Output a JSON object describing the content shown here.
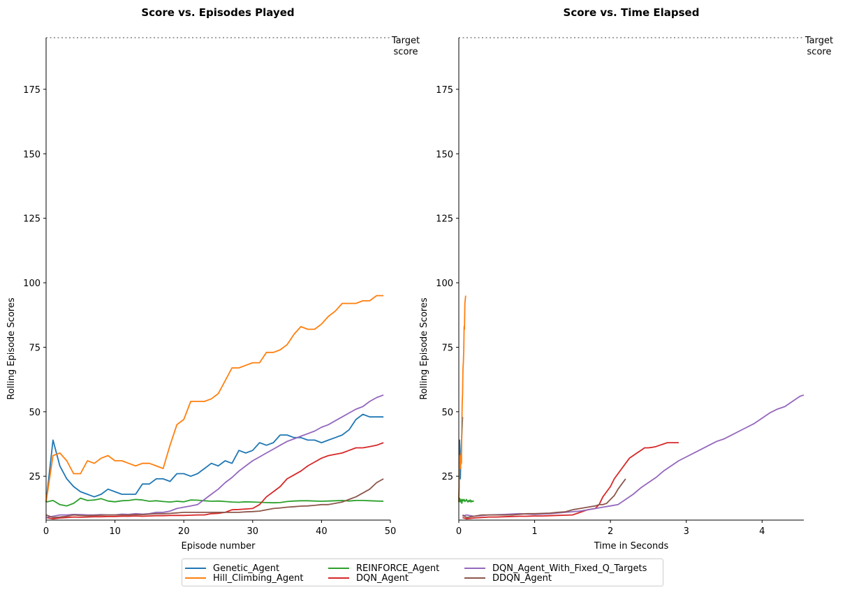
{
  "chart_data": [
    {
      "type": "line",
      "title": "Score vs. Episodes Played",
      "xlabel": "Episode number",
      "ylabel": "Rolling Episode Scores",
      "xlim": [
        0,
        50
      ],
      "ylim": [
        8,
        195
      ],
      "xticks": [
        0,
        10,
        20,
        30,
        40,
        50
      ],
      "yticks": [
        25,
        50,
        75,
        100,
        125,
        150,
        175
      ],
      "target": {
        "value": 195,
        "label_line1": "Target",
        "label_line2": "score"
      },
      "series": [
        {
          "name": "Genetic_Agent",
          "color": "#1f77b4",
          "x": [
            0,
            1,
            2,
            3,
            4,
            5,
            6,
            7,
            8,
            9,
            10,
            11,
            12,
            13,
            14,
            15,
            16,
            17,
            18,
            19,
            20,
            21,
            22,
            23,
            24,
            25,
            26,
            27,
            28,
            29,
            30,
            31,
            32,
            33,
            34,
            35,
            36,
            37,
            38,
            39,
            40,
            41,
            42,
            43,
            44,
            45,
            46,
            47,
            48,
            49
          ],
          "y": [
            15,
            39,
            29,
            24,
            21,
            19,
            18,
            17,
            18,
            20,
            19,
            18,
            18,
            18,
            22,
            22,
            24,
            24,
            23,
            26,
            26,
            25,
            26,
            28,
            30,
            29,
            31,
            30,
            35,
            34,
            35,
            38,
            37,
            38,
            41,
            41,
            40,
            40,
            39,
            39,
            38,
            39,
            40,
            41,
            43,
            47,
            49,
            48,
            48,
            48
          ]
        },
        {
          "name": "Hill_Climbing_Agent",
          "color": "#ff7f0e",
          "x": [
            0,
            1,
            2,
            3,
            4,
            5,
            6,
            7,
            8,
            9,
            10,
            11,
            12,
            13,
            14,
            15,
            16,
            17,
            18,
            19,
            20,
            21,
            22,
            23,
            24,
            25,
            26,
            27,
            28,
            29,
            30,
            31,
            32,
            33,
            34,
            35,
            36,
            37,
            38,
            39,
            40,
            41,
            42,
            43,
            44,
            45,
            46,
            47,
            48,
            49
          ],
          "y": [
            15,
            33,
            34,
            31,
            26,
            26,
            31,
            30,
            32,
            33,
            31,
            31,
            30,
            29,
            30,
            30,
            29,
            28,
            37,
            45,
            47,
            54,
            54,
            54,
            55,
            57,
            62,
            67,
            67,
            68,
            69,
            69,
            73,
            73,
            74,
            76,
            80,
            83,
            82,
            82,
            84,
            87,
            89,
            92,
            92,
            92,
            93,
            93,
            95,
            95
          ]
        },
        {
          "name": "REINFORCE_Agent",
          "color": "#2ca02c",
          "x": [
            0,
            1,
            2,
            3,
            4,
            5,
            6,
            7,
            8,
            9,
            10,
            11,
            12,
            13,
            14,
            15,
            16,
            17,
            18,
            19,
            20,
            21,
            22,
            23,
            24,
            25,
            26,
            27,
            28,
            29,
            30,
            31,
            32,
            33,
            34,
            35,
            36,
            37,
            38,
            39,
            40,
            41,
            42,
            43,
            44,
            45,
            46,
            47,
            48,
            49
          ],
          "y": [
            15,
            15.6,
            14,
            13.5,
            14.5,
            16.5,
            15.6,
            15.8,
            16.3,
            15.4,
            15.1,
            15.5,
            15.6,
            16,
            15.8,
            15.3,
            15.5,
            15.2,
            15,
            15.3,
            15.1,
            15.8,
            15.7,
            15.5,
            15.3,
            15.4,
            15.2,
            15,
            14.9,
            15.1,
            15,
            14.9,
            14.8,
            14.7,
            14.8,
            15.2,
            15.4,
            15.5,
            15.5,
            15.4,
            15.3,
            15.4,
            15.5,
            15.6,
            15.4,
            15.6,
            15.6,
            15.5,
            15.4,
            15.3
          ]
        },
        {
          "name": "DQN_Agent",
          "color": "#d62728",
          "x": [
            0,
            1,
            2,
            3,
            4,
            5,
            6,
            7,
            8,
            9,
            10,
            11,
            12,
            13,
            14,
            15,
            16,
            17,
            18,
            19,
            20,
            21,
            22,
            23,
            24,
            25,
            26,
            27,
            28,
            29,
            30,
            31,
            32,
            33,
            34,
            35,
            36,
            37,
            38,
            39,
            40,
            41,
            42,
            43,
            44,
            45,
            46,
            47,
            48,
            49
          ],
          "y": [
            9,
            8.5,
            8.8,
            9,
            9.2,
            9.1,
            9.2,
            9.3,
            9.3,
            9.4,
            9.4,
            9.5,
            9.5,
            9.6,
            9.5,
            9.6,
            9.7,
            9.7,
            9.8,
            9.8,
            9.8,
            9.9,
            10,
            10,
            10.5,
            10.6,
            11,
            12,
            12.1,
            12.3,
            12.5,
            14,
            17,
            19,
            21,
            24,
            25.5,
            27,
            29,
            30.5,
            32,
            33,
            33.5,
            34,
            35,
            36,
            36,
            36.5,
            37,
            38
          ]
        },
        {
          "name": "DQN_Agent_With_Fixed_Q_Targets",
          "color": "#9467bd",
          "x": [
            0,
            1,
            2,
            3,
            4,
            5,
            6,
            7,
            8,
            9,
            10,
            11,
            12,
            13,
            14,
            15,
            16,
            17,
            18,
            19,
            20,
            21,
            22,
            23,
            24,
            25,
            26,
            27,
            28,
            29,
            30,
            31,
            32,
            33,
            34,
            35,
            36,
            37,
            38,
            39,
            40,
            41,
            42,
            43,
            44,
            45,
            46,
            47,
            48,
            49
          ],
          "y": [
            9,
            9.5,
            10,
            10,
            10.2,
            10.1,
            10,
            10,
            10.1,
            10,
            10,
            10.3,
            10.2,
            10.5,
            10.3,
            10.5,
            11,
            11,
            11.5,
            12.5,
            13,
            13.5,
            14,
            16,
            18,
            20,
            22.5,
            24.5,
            27,
            29,
            31,
            32.5,
            34,
            35.5,
            37,
            38.5,
            39.5,
            40.5,
            41.5,
            42.5,
            44,
            45,
            46.5,
            48,
            49.5,
            51,
            52,
            54,
            55.5,
            56.5
          ]
        },
        {
          "name": "DDQN_Agent",
          "color": "#8c564b",
          "x": [
            0,
            1,
            2,
            3,
            4,
            5,
            6,
            7,
            8,
            9,
            10,
            11,
            12,
            13,
            14,
            15,
            16,
            17,
            18,
            19,
            20,
            21,
            22,
            23,
            24,
            25,
            26,
            27,
            28,
            29,
            30,
            31,
            32,
            33,
            34,
            35,
            36,
            37,
            38,
            39,
            40,
            41,
            42,
            43,
            44,
            45,
            46,
            47,
            48,
            49
          ],
          "y": [
            10,
            9,
            9.2,
            9.5,
            10,
            9.8,
            9.7,
            9.8,
            9.9,
            10,
            10,
            10,
            10,
            10.1,
            10.1,
            10.3,
            10.5,
            10.5,
            10.6,
            10.8,
            11,
            11,
            11,
            11,
            11,
            11,
            11,
            11,
            11,
            11.2,
            11.3,
            11.5,
            12,
            12.5,
            12.7,
            13,
            13.2,
            13.4,
            13.5,
            13.7,
            14,
            14,
            14.5,
            15,
            16,
            17,
            18.5,
            20,
            22.5,
            24
          ]
        }
      ]
    },
    {
      "type": "line",
      "title": "Score vs. Time Elapsed",
      "xlabel": "Time in Seconds",
      "ylabel": "Rolling Episode Scores",
      "xlim": [
        0,
        4.55
      ],
      "ylim": [
        8,
        195
      ],
      "xticks": [
        0,
        1,
        2,
        3,
        4
      ],
      "yticks": [
        25,
        50,
        75,
        100,
        125,
        150,
        175
      ],
      "target": {
        "value": 195,
        "label_line1": "Target",
        "label_line2": "score"
      },
      "series": [
        {
          "name": "Genetic_Agent",
          "color": "#1f77b4",
          "x": [
            0,
            0.005,
            0.01,
            0.015,
            0.02,
            0.025,
            0.03,
            0.035,
            0.04,
            0.045,
            0.05
          ],
          "y": [
            15,
            22,
            39,
            29,
            24,
            30,
            35,
            38,
            41,
            45,
            48
          ]
        },
        {
          "name": "Hill_Climbing_Agent",
          "color": "#ff7f0e",
          "x": [
            0,
            0.01,
            0.02,
            0.03,
            0.035,
            0.04,
            0.045,
            0.05,
            0.055,
            0.06,
            0.065,
            0.07,
            0.075,
            0.08,
            0.09
          ],
          "y": [
            15,
            33,
            28,
            34,
            30,
            45,
            54,
            57,
            67,
            69,
            74,
            83,
            82,
            92,
            95
          ]
        },
        {
          "name": "REINFORCE_Agent",
          "color": "#2ca02c",
          "x": [
            0,
            0.01,
            0.02,
            0.03,
            0.04,
            0.05,
            0.06,
            0.07,
            0.08,
            0.09,
            0.1,
            0.11,
            0.12,
            0.13,
            0.14,
            0.15,
            0.16,
            0.17,
            0.18,
            0.19,
            0.2
          ],
          "y": [
            15,
            16.5,
            15,
            16,
            14.5,
            16,
            15.5,
            16,
            15.2,
            15.5,
            16,
            15.5,
            15,
            15.6,
            15.2,
            15.8,
            15,
            15.5,
            15.2,
            15.4,
            15.3
          ]
        },
        {
          "name": "DQN_Agent",
          "color": "#d62728",
          "x": [
            0.05,
            0.1,
            0.2,
            0.3,
            0.4,
            0.5,
            0.6,
            0.7,
            0.8,
            0.9,
            1.0,
            1.1,
            1.2,
            1.3,
            1.4,
            1.5,
            1.6,
            1.7,
            1.8,
            1.85,
            1.9,
            1.95,
            2.0,
            2.05,
            2.1,
            2.15,
            2.2,
            2.25,
            2.3,
            2.35,
            2.4,
            2.45,
            2.5,
            2.55,
            2.6,
            2.65,
            2.7,
            2.75,
            2.8,
            2.85,
            2.9
          ],
          "y": [
            9,
            8.5,
            8.8,
            9,
            9.2,
            9.2,
            9.3,
            9.4,
            9.5,
            9.5,
            9.6,
            9.6,
            9.7,
            9.8,
            9.9,
            10,
            11,
            12,
            12.5,
            14,
            17,
            19,
            21,
            24,
            26,
            28,
            30,
            32,
            33,
            34,
            35,
            36,
            36,
            36.2,
            36.5,
            37,
            37.5,
            38,
            38,
            38,
            38
          ]
        },
        {
          "name": "DQN_Agent_With_Fixed_Q_Targets",
          "color": "#9467bd",
          "x": [
            0.05,
            0.1,
            0.2,
            0.4,
            0.6,
            0.8,
            1.0,
            1.2,
            1.4,
            1.6,
            1.8,
            1.9,
            2.0,
            2.1,
            2.2,
            2.3,
            2.4,
            2.5,
            2.6,
            2.7,
            2.8,
            2.9,
            3.0,
            3.1,
            3.2,
            3.3,
            3.4,
            3.5,
            3.6,
            3.7,
            3.8,
            3.9,
            4.0,
            4.1,
            4.2,
            4.3,
            4.4,
            4.5,
            4.55
          ],
          "y": [
            9.5,
            10,
            9.5,
            10,
            10.2,
            10.5,
            10.2,
            10.5,
            11,
            11.5,
            12.5,
            13,
            13.5,
            14,
            16,
            18,
            20.5,
            22.5,
            24.5,
            27,
            29,
            31,
            32.5,
            34,
            35.5,
            37,
            38.5,
            39.5,
            41,
            42.5,
            44,
            45.5,
            47.5,
            49.5,
            51,
            52,
            54,
            56,
            56.5
          ]
        },
        {
          "name": "DDQN_Agent",
          "color": "#8c564b",
          "x": [
            0.05,
            0.1,
            0.2,
            0.3,
            0.5,
            0.7,
            0.9,
            1.0,
            1.1,
            1.2,
            1.3,
            1.4,
            1.5,
            1.6,
            1.7,
            1.8,
            1.85,
            1.9,
            1.95,
            2.0,
            2.05,
            2.1,
            2.15,
            2.2
          ],
          "y": [
            10,
            9,
            9.5,
            10,
            10,
            10,
            10.5,
            10.5,
            10.6,
            10.7,
            11,
            11.2,
            12,
            12.5,
            13,
            13.5,
            14,
            14,
            14.5,
            16,
            17.5,
            20,
            22,
            24
          ]
        }
      ]
    }
  ],
  "legend": {
    "items": [
      {
        "label": "Genetic_Agent",
        "color": "#1f77b4"
      },
      {
        "label": "Hill_Climbing_Agent",
        "color": "#ff7f0e"
      },
      {
        "label": "REINFORCE_Agent",
        "color": "#2ca02c"
      },
      {
        "label": "DQN_Agent",
        "color": "#d62728"
      },
      {
        "label": "DQN_Agent_With_Fixed_Q_Targets",
        "color": "#9467bd"
      },
      {
        "label": "DDQN_Agent",
        "color": "#8c564b"
      }
    ]
  }
}
